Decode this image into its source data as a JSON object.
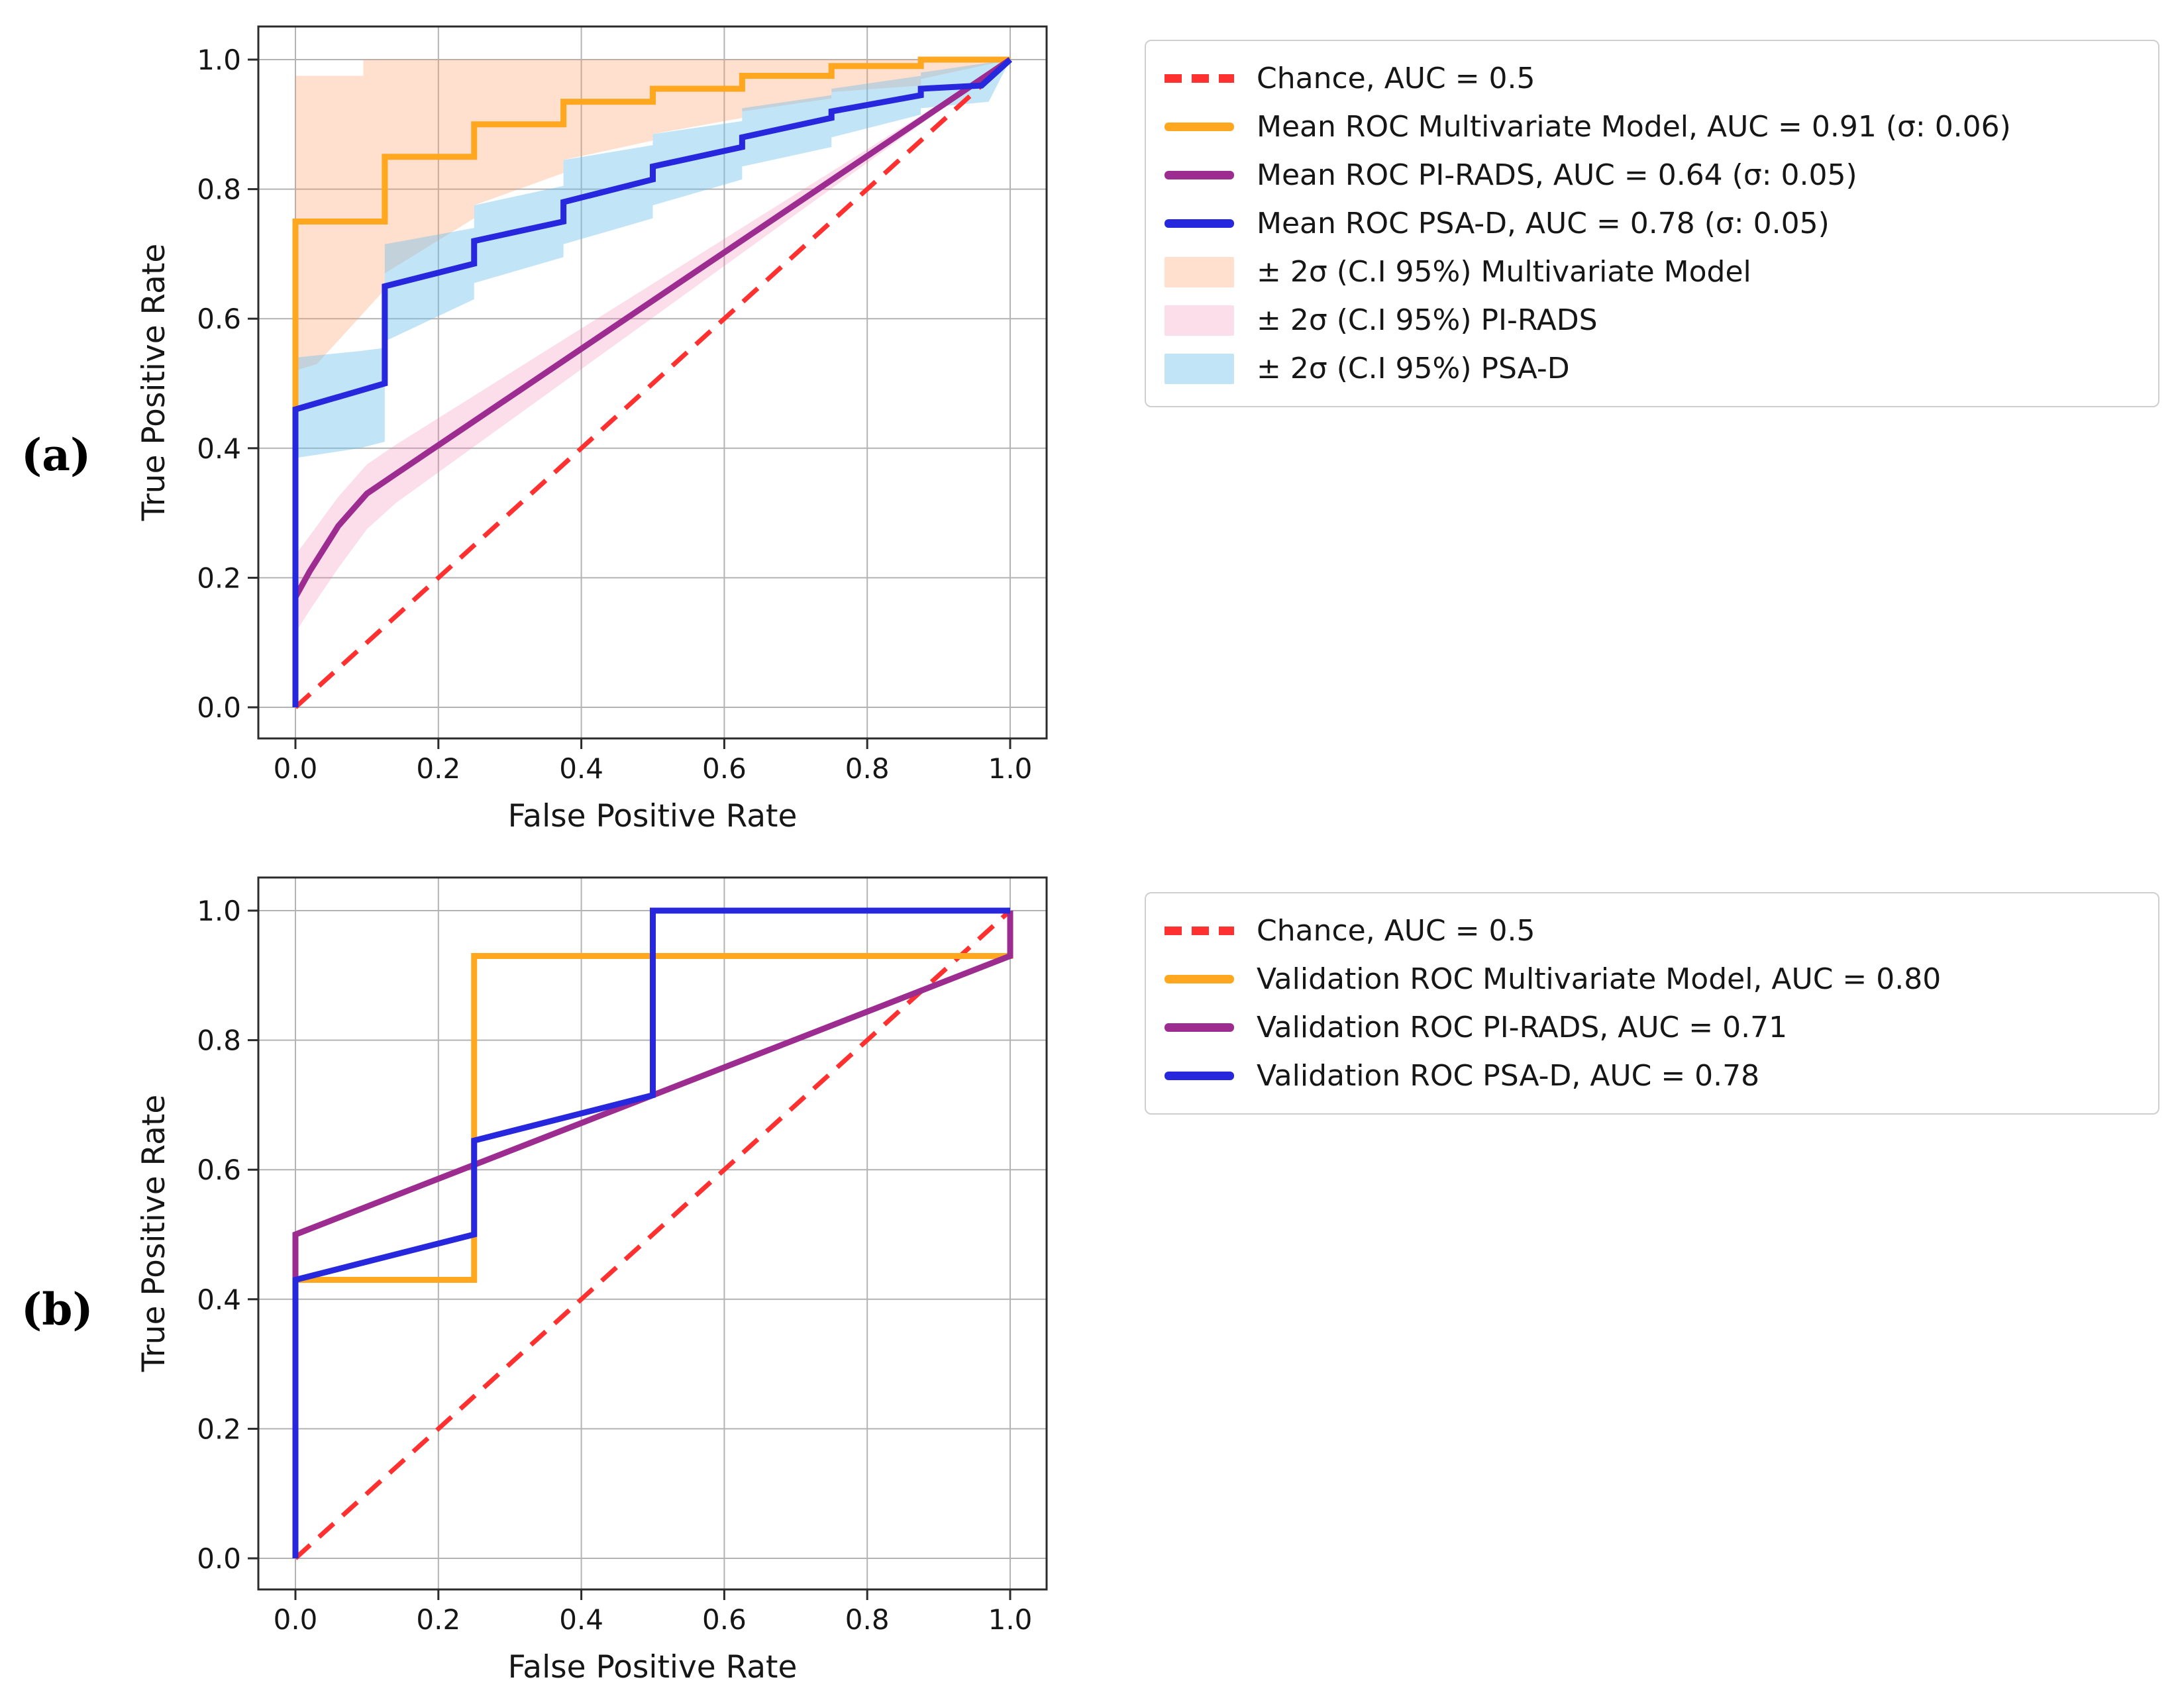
{
  "figure": {
    "panel_a_label": "(a)",
    "panel_b_label": "(b)"
  },
  "colors": {
    "chance": "#ff3030",
    "multivariate": "#ffa71e",
    "pirads": "#9d2c90",
    "psad": "#2727dd",
    "multivariate_band": "rgba(255,150,90,0.30)",
    "pirads_band": "rgba(242,120,170,0.25)",
    "psad_band": "rgba(110,190,235,0.42)",
    "grid": "#b3b3b3",
    "spine": "#2b2b2b"
  },
  "chart_data": [
    {
      "id": "a",
      "type": "line",
      "title": "",
      "xlabel": "False Positive Rate",
      "ylabel": "True Positive Rate",
      "xlim": [
        -0.05,
        1.05
      ],
      "ylim": [
        -0.05,
        1.05
      ],
      "grid": true,
      "xticks": {
        "values": [
          0.0,
          0.2,
          0.4,
          0.6,
          0.8,
          1.0
        ],
        "labels": [
          "0.0",
          "0.2",
          "0.4",
          "0.6",
          "0.8",
          "1.0"
        ]
      },
      "yticks": {
        "values": [
          0.0,
          0.2,
          0.4,
          0.6,
          0.8,
          1.0
        ],
        "labels": [
          "0.0",
          "0.2",
          "0.4",
          "0.6",
          "0.8",
          "1.0"
        ]
      },
      "bands": [
        {
          "name": "ci-multivariate",
          "color": "rgba(255,150,90,0.30)",
          "upper": [
            [
              0,
              0.975
            ],
            [
              0.095,
              0.975
            ],
            [
              0.095,
              1.0
            ],
            [
              1,
              1.0
            ]
          ],
          "lower": [
            [
              0,
              0.52
            ],
            [
              0.03,
              0.53
            ],
            [
              0.125,
              0.645
            ],
            [
              0.125,
              0.67
            ],
            [
              0.25,
              0.755
            ],
            [
              0.25,
              0.775
            ],
            [
              0.375,
              0.825
            ],
            [
              0.375,
              0.845
            ],
            [
              0.5,
              0.875
            ],
            [
              0.5,
              0.885
            ],
            [
              0.625,
              0.91
            ],
            [
              0.625,
              0.92
            ],
            [
              0.75,
              0.94
            ],
            [
              0.75,
              0.95
            ],
            [
              0.875,
              0.96
            ],
            [
              0.875,
              0.97
            ],
            [
              1,
              1.0
            ]
          ]
        },
        {
          "name": "ci-pirads",
          "color": "rgba(242,120,170,0.25)",
          "upper": [
            [
              0,
              0.235
            ],
            [
              0.02,
              0.265
            ],
            [
              0.06,
              0.325
            ],
            [
              0.1,
              0.375
            ],
            [
              0.14,
              0.405
            ],
            [
              1,
              1.0
            ]
          ],
          "lower": [
            [
              0,
              0.115
            ],
            [
              0.02,
              0.15
            ],
            [
              0.06,
              0.215
            ],
            [
              0.1,
              0.275
            ],
            [
              0.14,
              0.315
            ],
            [
              1,
              1.0
            ]
          ]
        },
        {
          "name": "ci-psad",
          "color": "rgba(110,190,235,0.42)",
          "upper": [
            [
              0,
              0.54
            ],
            [
              0.09,
              0.55
            ],
            [
              0.125,
              0.555
            ],
            [
              0.125,
              0.715
            ],
            [
              0.25,
              0.74
            ],
            [
              0.25,
              0.775
            ],
            [
              0.375,
              0.805
            ],
            [
              0.375,
              0.845
            ],
            [
              0.5,
              0.868
            ],
            [
              0.5,
              0.885
            ],
            [
              0.625,
              0.905
            ],
            [
              0.625,
              0.925
            ],
            [
              0.75,
              0.945
            ],
            [
              0.75,
              0.955
            ],
            [
              0.875,
              0.975
            ],
            [
              0.875,
              0.98
            ],
            [
              1,
              1.0
            ]
          ],
          "lower": [
            [
              0,
              0.385
            ],
            [
              0.09,
              0.4
            ],
            [
              0.125,
              0.41
            ],
            [
              0.125,
              0.565
            ],
            [
              0.25,
              0.63
            ],
            [
              0.25,
              0.655
            ],
            [
              0.375,
              0.695
            ],
            [
              0.375,
              0.715
            ],
            [
              0.5,
              0.755
            ],
            [
              0.5,
              0.775
            ],
            [
              0.625,
              0.815
            ],
            [
              0.625,
              0.835
            ],
            [
              0.75,
              0.865
            ],
            [
              0.75,
              0.88
            ],
            [
              0.875,
              0.915
            ],
            [
              0.875,
              0.925
            ],
            [
              0.97,
              0.935
            ],
            [
              1,
              1.0
            ]
          ]
        }
      ],
      "series": [
        {
          "name": "Chance",
          "auc": 0.5,
          "color": "#ff3030",
          "dash": [
            30,
            18
          ],
          "width": 7,
          "points": [
            [
              0,
              0
            ],
            [
              1,
              1
            ]
          ]
        },
        {
          "name": "Mean ROC Multivariate Model",
          "auc": 0.91,
          "sigma": 0.06,
          "color": "#ffa71e",
          "dash": null,
          "width": 9,
          "points": [
            [
              0,
              0
            ],
            [
              0,
              0.75
            ],
            [
              0.125,
              0.75
            ],
            [
              0.125,
              0.85
            ],
            [
              0.25,
              0.85
            ],
            [
              0.25,
              0.9
            ],
            [
              0.375,
              0.9
            ],
            [
              0.375,
              0.935
            ],
            [
              0.5,
              0.935
            ],
            [
              0.5,
              0.955
            ],
            [
              0.625,
              0.955
            ],
            [
              0.625,
              0.975
            ],
            [
              0.75,
              0.975
            ],
            [
              0.75,
              0.99
            ],
            [
              0.875,
              0.99
            ],
            [
              0.875,
              1.0
            ],
            [
              1,
              1.0
            ]
          ]
        },
        {
          "name": "Mean ROC PI-RADS",
          "auc": 0.64,
          "sigma": 0.05,
          "color": "#9d2c90",
          "dash": null,
          "width": 9,
          "points": [
            [
              0,
              0
            ],
            [
              0,
              0.17
            ],
            [
              0.02,
              0.21
            ],
            [
              0.06,
              0.28
            ],
            [
              0.1,
              0.33
            ],
            [
              0.14,
              0.36
            ],
            [
              1,
              1.0
            ]
          ]
        },
        {
          "name": "Mean ROC PSA-D",
          "auc": 0.78,
          "sigma": 0.05,
          "color": "#2727dd",
          "dash": null,
          "width": 9,
          "points": [
            [
              0,
              0
            ],
            [
              0,
              0.46
            ],
            [
              0.125,
              0.5
            ],
            [
              0.125,
              0.65
            ],
            [
              0.25,
              0.685
            ],
            [
              0.25,
              0.72
            ],
            [
              0.375,
              0.75
            ],
            [
              0.375,
              0.78
            ],
            [
              0.5,
              0.815
            ],
            [
              0.5,
              0.835
            ],
            [
              0.625,
              0.865
            ],
            [
              0.625,
              0.88
            ],
            [
              0.75,
              0.91
            ],
            [
              0.75,
              0.92
            ],
            [
              0.875,
              0.945
            ],
            [
              0.875,
              0.955
            ],
            [
              0.96,
              0.96
            ],
            [
              1,
              1.0
            ]
          ]
        }
      ],
      "legend": {
        "position": "outside-right",
        "entries": [
          {
            "swatch": "dash",
            "color": "#ff3030",
            "label": "Chance, AUC = 0.5"
          },
          {
            "swatch": "line",
            "color": "#ffa71e",
            "label": "Mean ROC Multivariate Model, AUC = 0.91 (σ:  0.06)"
          },
          {
            "swatch": "line",
            "color": "#9d2c90",
            "label": "Mean ROC PI-RADS, AUC = 0.64 (σ:  0.05)"
          },
          {
            "swatch": "line",
            "color": "#2727dd",
            "label": "Mean ROC PSA-D, AUC = 0.78 (σ:  0.05)"
          },
          {
            "swatch": "patch",
            "color": "rgba(255,150,90,0.30)",
            "label": "± 2σ (C.I 95%) Multivariate Model"
          },
          {
            "swatch": "patch",
            "color": "rgba(242,120,170,0.25)",
            "label": "± 2σ (C.I 95%) PI-RADS"
          },
          {
            "swatch": "patch",
            "color": "rgba(110,190,235,0.42)",
            "label": "± 2σ (C.I 95%) PSA-D"
          }
        ]
      }
    },
    {
      "id": "b",
      "type": "line",
      "title": "",
      "xlabel": "False Positive Rate",
      "ylabel": "True Positive Rate",
      "xlim": [
        -0.05,
        1.05
      ],
      "ylim": [
        -0.05,
        1.05
      ],
      "grid": true,
      "xticks": {
        "values": [
          0.0,
          0.2,
          0.4,
          0.6,
          0.8,
          1.0
        ],
        "labels": [
          "0.0",
          "0.2",
          "0.4",
          "0.6",
          "0.8",
          "1.0"
        ]
      },
      "yticks": {
        "values": [
          0.0,
          0.2,
          0.4,
          0.6,
          0.8,
          1.0
        ],
        "labels": [
          "0.0",
          "0.2",
          "0.4",
          "0.6",
          "0.8",
          "1.0"
        ]
      },
      "bands": [],
      "series": [
        {
          "name": "Chance",
          "auc": 0.5,
          "color": "#ff3030",
          "dash": [
            30,
            18
          ],
          "width": 7,
          "points": [
            [
              0,
              0
            ],
            [
              1,
              1
            ]
          ]
        },
        {
          "name": "Validation ROC Multivariate Model",
          "auc": 0.8,
          "color": "#ffa71e",
          "dash": null,
          "width": 9,
          "points": [
            [
              0,
              0
            ],
            [
              0,
              0.43
            ],
            [
              0.25,
              0.43
            ],
            [
              0.25,
              0.93
            ],
            [
              1,
              0.93
            ],
            [
              1,
              1.0
            ]
          ]
        },
        {
          "name": "Validation ROC PI-RADS",
          "auc": 0.71,
          "color": "#9d2c90",
          "dash": null,
          "width": 9,
          "points": [
            [
              0,
              0
            ],
            [
              0,
              0.5
            ],
            [
              1,
              0.93
            ],
            [
              1,
              1.0
            ]
          ]
        },
        {
          "name": "Validation ROC PSA-D",
          "auc": 0.78,
          "color": "#2727dd",
          "dash": null,
          "width": 9,
          "points": [
            [
              0,
              0
            ],
            [
              0,
              0.43
            ],
            [
              0.25,
              0.5
            ],
            [
              0.25,
              0.645
            ],
            [
              0.5,
              0.715
            ],
            [
              0.5,
              1.0
            ],
            [
              1,
              1.0
            ]
          ]
        }
      ],
      "legend": {
        "position": "outside-right",
        "entries": [
          {
            "swatch": "dash",
            "color": "#ff3030",
            "label": "Chance, AUC = 0.5"
          },
          {
            "swatch": "line",
            "color": "#ffa71e",
            "label": "Validation ROC Multivariate Model, AUC = 0.80"
          },
          {
            "swatch": "line",
            "color": "#9d2c90",
            "label": "Validation ROC PI-RADS, AUC = 0.71"
          },
          {
            "swatch": "line",
            "color": "#2727dd",
            "label": "Validation ROC PSA-D, AUC = 0.78"
          }
        ]
      }
    }
  ]
}
